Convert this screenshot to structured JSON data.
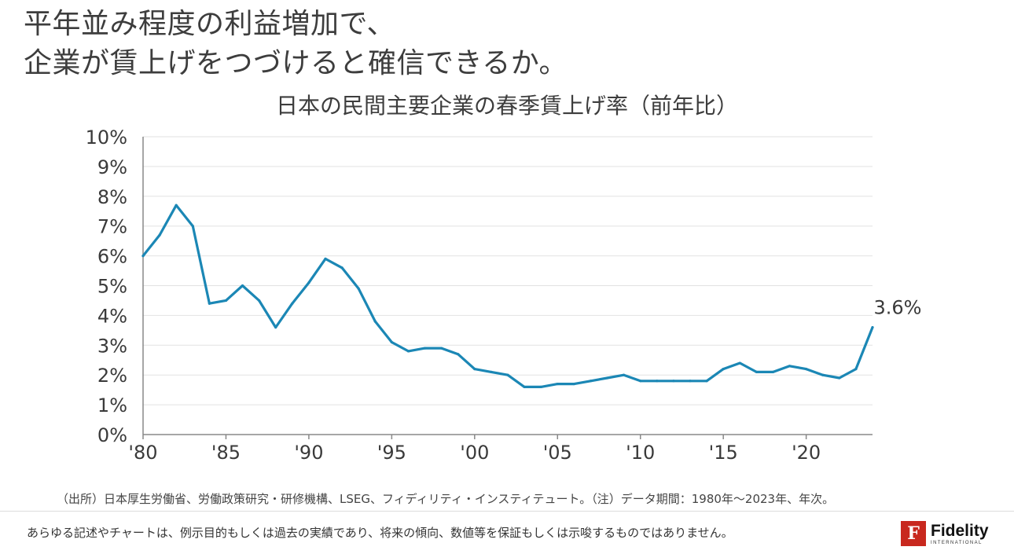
{
  "headline": {
    "line1": "平年並み程度の利益増加で、",
    "line2": "企業が賃上げをつづけると確信できるか。"
  },
  "source_note": "（出所）日本厚生労働省、労働政策研究・研修機構、LSEG、フィディリティ・インスティテュート。（注）データ期間：1980年～2023年、年次。",
  "disclaimer": "あらゆる記述やチャートは、例示目的もしくは過去の実績であり、将来の傾向、数値等を保証もしくは示唆するものではありません。",
  "logo": {
    "mark": "F",
    "name": "Fidelity",
    "sub": "INTERNATIONAL",
    "color": "#c8281e"
  },
  "colors": {
    "line": "#1b87b5",
    "grid": "#e2e2e2",
    "axis": "#888888",
    "text": "#3a3a3a"
  },
  "chart_data": {
    "type": "line",
    "title": "日本の民間主要企業の春季賃上げ率（前年比）",
    "xlabel": "",
    "ylabel": "",
    "xlim": [
      1980,
      2024
    ],
    "ylim": [
      0,
      10
    ],
    "grid": true,
    "yticks": [
      {
        "value": 0,
        "label": "0%"
      },
      {
        "value": 1,
        "label": "1%"
      },
      {
        "value": 2,
        "label": "2%"
      },
      {
        "value": 3,
        "label": "3%"
      },
      {
        "value": 4,
        "label": "4%"
      },
      {
        "value": 5,
        "label": "5%"
      },
      {
        "value": 6,
        "label": "6%"
      },
      {
        "value": 7,
        "label": "7%"
      },
      {
        "value": 8,
        "label": "8%"
      },
      {
        "value": 9,
        "label": "9%"
      },
      {
        "value": 10,
        "label": "10%"
      }
    ],
    "xticks": [
      {
        "value": 1980,
        "label": "'80"
      },
      {
        "value": 1985,
        "label": "'85"
      },
      {
        "value": 1990,
        "label": "'90"
      },
      {
        "value": 1995,
        "label": "'95"
      },
      {
        "value": 2000,
        "label": "'00"
      },
      {
        "value": 2005,
        "label": "'05"
      },
      {
        "value": 2010,
        "label": "'10"
      },
      {
        "value": 2015,
        "label": "'15"
      },
      {
        "value": 2020,
        "label": "'20"
      }
    ],
    "x": [
      1980,
      1981,
      1982,
      1983,
      1984,
      1985,
      1986,
      1987,
      1988,
      1989,
      1990,
      1991,
      1992,
      1993,
      1994,
      1995,
      1996,
      1997,
      1998,
      1999,
      2000,
      2001,
      2002,
      2003,
      2004,
      2005,
      2006,
      2007,
      2008,
      2009,
      2010,
      2011,
      2012,
      2013,
      2014,
      2015,
      2016,
      2017,
      2018,
      2019,
      2020,
      2021,
      2022,
      2023,
      2024
    ],
    "values": [
      6.0,
      6.7,
      7.7,
      7.0,
      4.4,
      4.5,
      5.0,
      4.5,
      3.6,
      4.4,
      5.1,
      5.9,
      5.6,
      4.9,
      3.8,
      3.1,
      2.8,
      2.9,
      2.9,
      2.7,
      2.2,
      2.1,
      2.0,
      1.6,
      1.6,
      1.7,
      1.7,
      1.8,
      1.9,
      2.0,
      1.8,
      1.8,
      1.8,
      1.8,
      1.8,
      2.2,
      2.4,
      2.1,
      2.1,
      2.3,
      2.2,
      2.0,
      1.9,
      2.2,
      3.6
    ],
    "annotations": [
      {
        "x": 2024,
        "y": 3.6,
        "text": "3.6%"
      }
    ]
  }
}
